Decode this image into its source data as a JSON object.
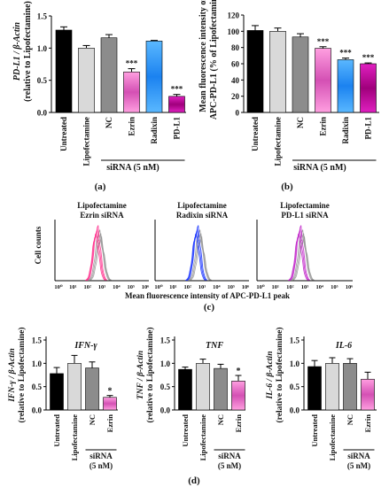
{
  "chart_data": [
    {
      "panel": "(a)",
      "type": "bar",
      "ylabel": "PD-L1 / β-Actin",
      "ylabel_sub": "(relative to Lipofectamine)",
      "ylim": [
        0,
        1.5
      ],
      "yticks": [
        "0.0",
        "0.5",
        "1.0",
        "1.5"
      ],
      "categories": [
        "Untreated",
        "Lipofectamine",
        "NC",
        "Ezrin",
        "Radixin",
        "PD-L1"
      ],
      "values": [
        1.28,
        1.0,
        1.16,
        0.63,
        1.11,
        0.25
      ],
      "errors": [
        0.05,
        0.04,
        0.05,
        0.05,
        0.01,
        0.03
      ],
      "significance": [
        "",
        "",
        "",
        "***",
        "",
        "***"
      ],
      "group_label": "siRNA (5 nM)",
      "colors": [
        "#000000",
        "#d9d9d9",
        "#8c8c8c",
        "#ff8ad8",
        "#1f8fff",
        "#c8009a"
      ]
    },
    {
      "panel": "(b)",
      "type": "bar",
      "ylabel": "Mean fluorescence intensity of",
      "ylabel_sub": "APC-PD-L1 (% of Lipofectamine)",
      "ylim": [
        0,
        120
      ],
      "yticks": [
        "0",
        "20",
        "40",
        "60",
        "80",
        "100",
        "120"
      ],
      "categories": [
        "Untreated",
        "Lipofectamine",
        "NC",
        "Ezrin",
        "Radixin",
        "PD-L1"
      ],
      "values": [
        101,
        100,
        93,
        79,
        65,
        60
      ],
      "errors": [
        6,
        4,
        4,
        2,
        2,
        1
      ],
      "significance": [
        "",
        "",
        "",
        "***",
        "***",
        "***"
      ],
      "group_label": "siRNA (5 nM)",
      "colors": [
        "#000000",
        "#d9d9d9",
        "#8c8c8c",
        "#ff8ad8",
        "#1f8fff",
        "#c8009a"
      ]
    },
    {
      "panel": "(c)",
      "type": "histogram",
      "ylabel": "Cell counts",
      "xlabel": "Mean fluorescence intensity of APC-PD-L1 peak",
      "xticks": [
        "10⁰",
        "10¹",
        "10²",
        "10³",
        "10⁴",
        "10⁵",
        "10⁶"
      ],
      "plots": [
        {
          "legend": [
            "Lipofectamine",
            "Ezrin siRNA"
          ],
          "colors": [
            "#888888",
            "#ff2a8a"
          ]
        },
        {
          "legend": [
            "Lipofectamine",
            "Radixin siRNA"
          ],
          "colors": [
            "#888888",
            "#1530ff"
          ]
        },
        {
          "legend": [
            "Lipofectamine",
            "PD-L1 siRNA"
          ],
          "colors": [
            "#888888",
            "#c020c8"
          ]
        }
      ]
    },
    {
      "panel": "(d)",
      "type": "bar",
      "ylabel_sub": "(relative to Lipofectamine)",
      "group_label": "siRNA",
      "group_label_2": "(5 nM)",
      "categories": [
        "Untreated",
        "Lipofectamine",
        "NC",
        "Ezrin"
      ],
      "colors": [
        "#000000",
        "#d9d9d9",
        "#8c8c8c",
        "#ff8ad8"
      ],
      "ylim": [
        0,
        1.5
      ],
      "yticks": [
        "0.0",
        "0.5",
        "1.0",
        "1.5"
      ],
      "subplots": [
        {
          "title": "IFN-γ",
          "ylabel": "IFN-γ / β-Actin",
          "values": [
            0.78,
            1.0,
            0.9,
            0.27
          ],
          "errors": [
            0.13,
            0.17,
            0.13,
            0.04
          ],
          "significance": [
            "",
            "",
            "",
            "*"
          ]
        },
        {
          "title": "TNF",
          "ylabel": "TNF / β-Actin",
          "values": [
            0.87,
            1.0,
            0.89,
            0.62
          ],
          "errors": [
            0.05,
            0.09,
            0.09,
            0.12
          ],
          "significance": [
            "",
            "",
            "",
            "*"
          ]
        },
        {
          "title": "IL-6",
          "ylabel": "IL-6 / β-Actin",
          "values": [
            0.93,
            1.0,
            1.0,
            0.66
          ],
          "errors": [
            0.13,
            0.12,
            0.1,
            0.15
          ],
          "significance": [
            "",
            "",
            "",
            ""
          ]
        }
      ]
    }
  ]
}
